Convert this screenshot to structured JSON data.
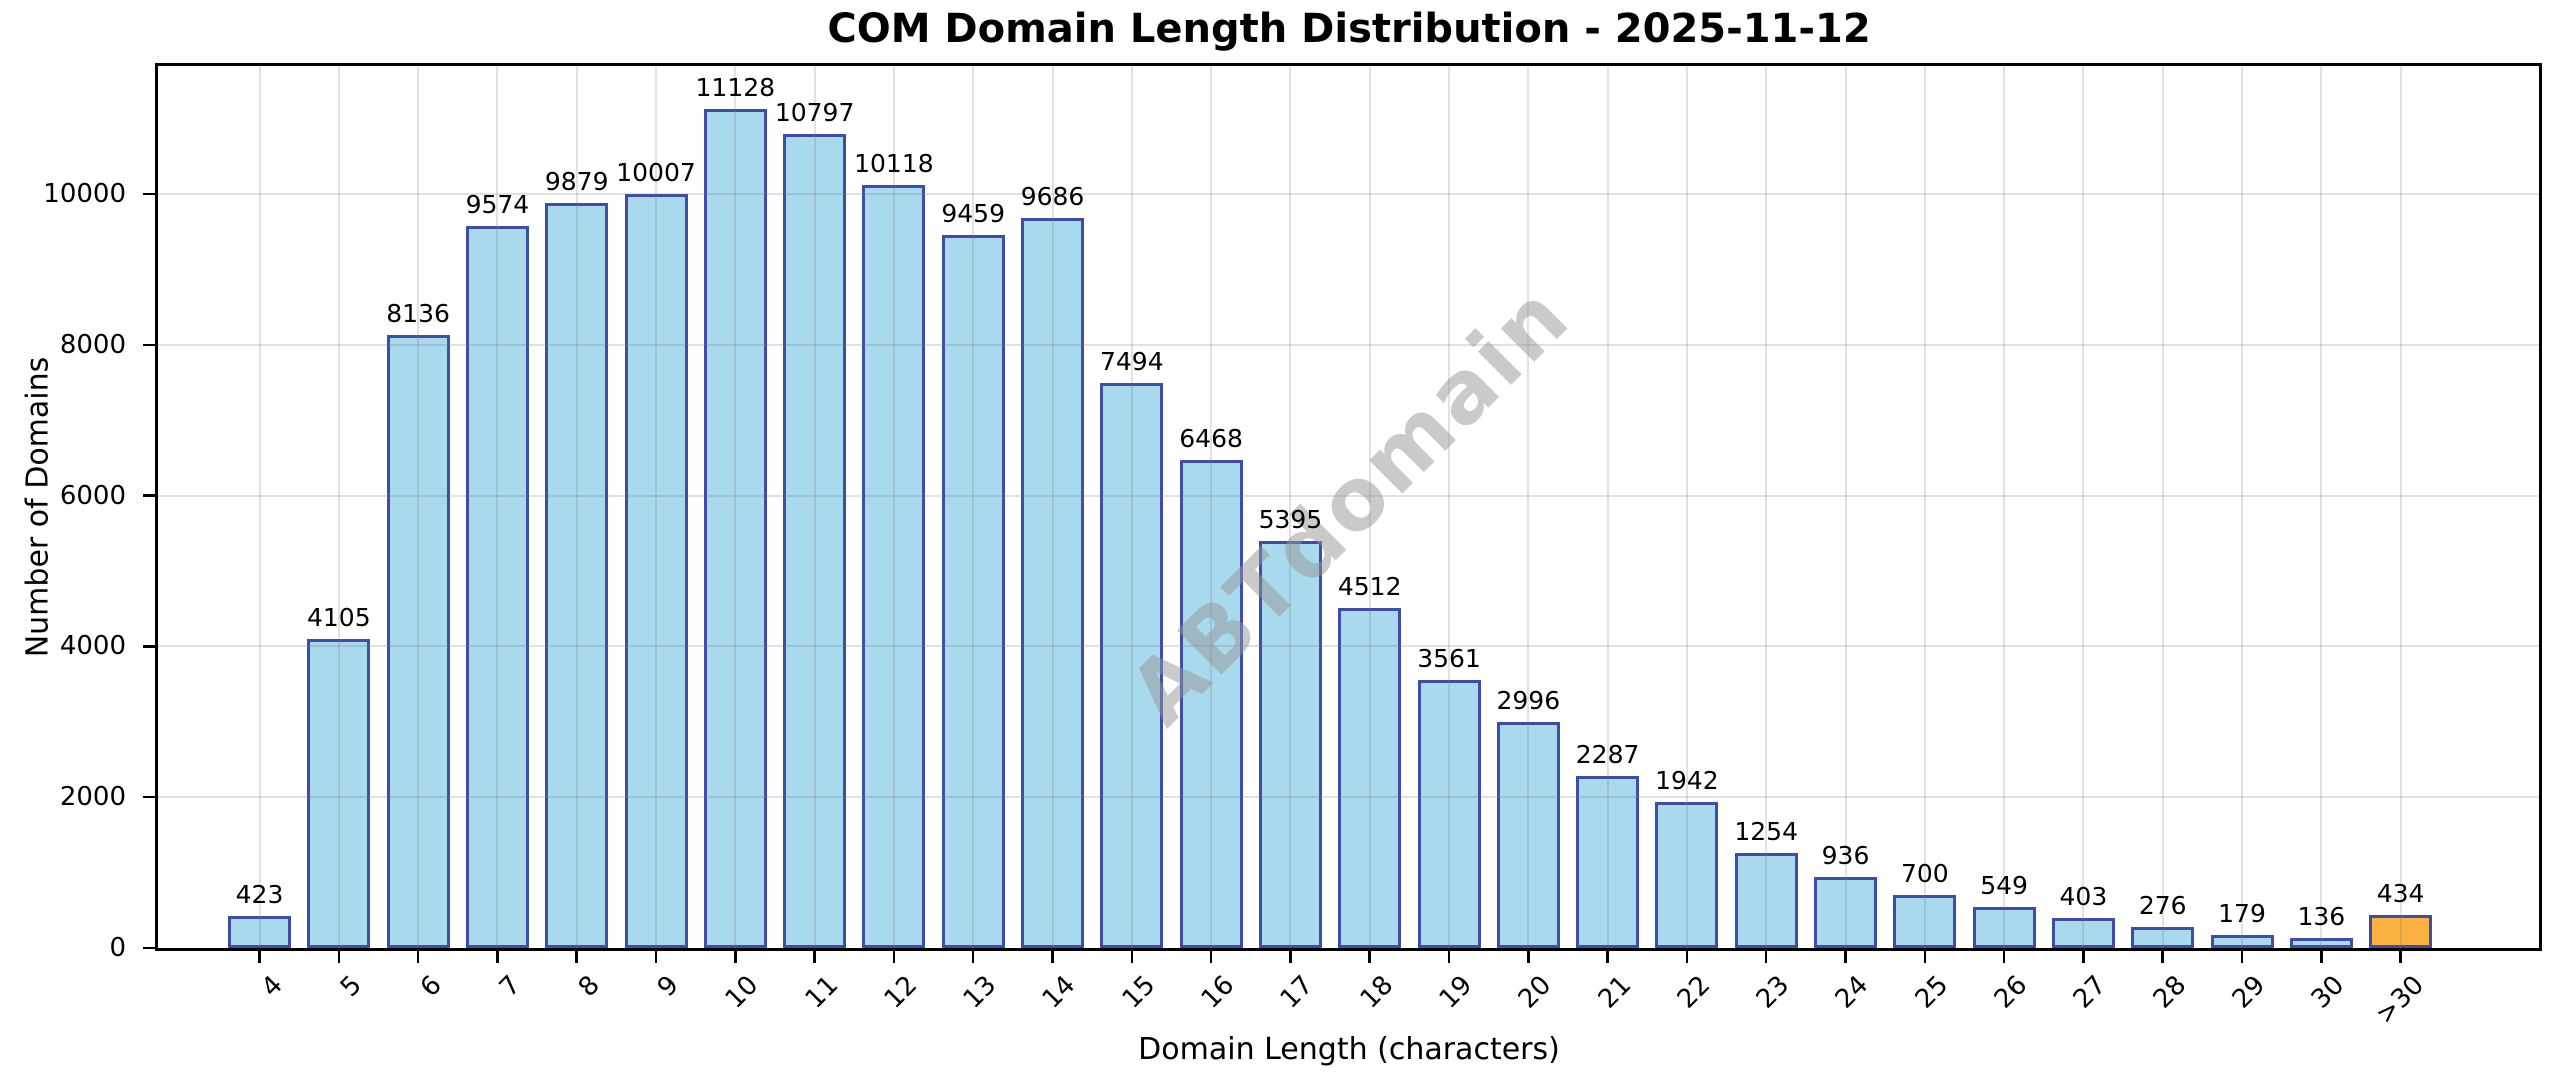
{
  "watermark": "ABTdomain",
  "chart_data": {
    "type": "bar",
    "title": "COM Domain Length Distribution - 2025-11-12",
    "xlabel": "Domain Length (characters)",
    "ylabel": "Number of Domains",
    "categories": [
      "4",
      "5",
      "6",
      "7",
      "8",
      "9",
      "10",
      "11",
      "12",
      "13",
      "14",
      "15",
      "16",
      "17",
      "18",
      "19",
      "20",
      "21",
      "22",
      "23",
      "24",
      "25",
      "26",
      "27",
      "28",
      "29",
      "30",
      ">30"
    ],
    "values": [
      423,
      4105,
      8136,
      9574,
      9879,
      10007,
      11128,
      10797,
      10118,
      9459,
      9686,
      7494,
      6468,
      5395,
      4512,
      3561,
      2996,
      2287,
      1942,
      1254,
      936,
      700,
      549,
      403,
      276,
      179,
      136,
      434
    ],
    "yticks": [
      0,
      2000,
      4000,
      6000,
      8000,
      10000
    ],
    "ylim": [
      0,
      11700
    ],
    "grid": true,
    "legend": false,
    "value_labels": true,
    "bar_color": "#a8d9ec",
    "bar_edge_color": "#3f4da8",
    "highlight_last_bar_color": "#fbb042",
    "xtick_rotation": 45
  }
}
